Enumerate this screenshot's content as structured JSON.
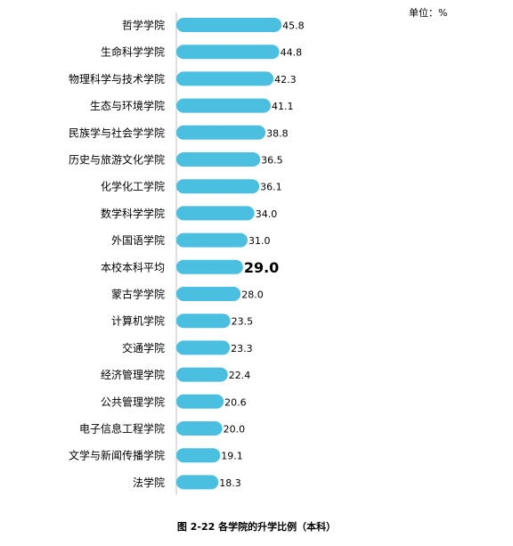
{
  "unit_label": "单位：%",
  "caption": "图 2-22 各学院的升学比例（本科）",
  "colors": {
    "bar": "#4bbfe0",
    "highlight_text": "#000000"
  },
  "chart_data": {
    "type": "bar",
    "orientation": "horizontal",
    "categories": [
      "哲学学院",
      "生命科学学院",
      "物理科学与技术学院",
      "生态与环境学院",
      "民族学与社会学学院",
      "历史与旅游文化学院",
      "化学化工学院",
      "数学科学学院",
      "外国语学院",
      "本校本科平均",
      "蒙古学学院",
      "计算机学院",
      "交通学院",
      "经济管理学院",
      "公共管理学院",
      "电子信息工程学院",
      "文学与新闻传播学院",
      "法学院"
    ],
    "values": [
      45.8,
      44.8,
      42.3,
      41.1,
      38.8,
      36.5,
      36.1,
      34.0,
      31.0,
      29.0,
      28.0,
      23.5,
      23.3,
      22.4,
      20.6,
      20.0,
      19.1,
      18.3
    ],
    "value_labels": [
      "45.8",
      "44.8",
      "42.3",
      "41.1",
      "38.8",
      "36.5",
      "36.1",
      "34.0",
      "31.0",
      "29.0",
      "28.0",
      "23.5",
      "23.3",
      "22.4",
      "20.6",
      "20.0",
      "19.1",
      "18.3"
    ],
    "highlight_category": "本校本科平均",
    "xlim": [
      0,
      50
    ],
    "grid": false,
    "legend": "none"
  }
}
